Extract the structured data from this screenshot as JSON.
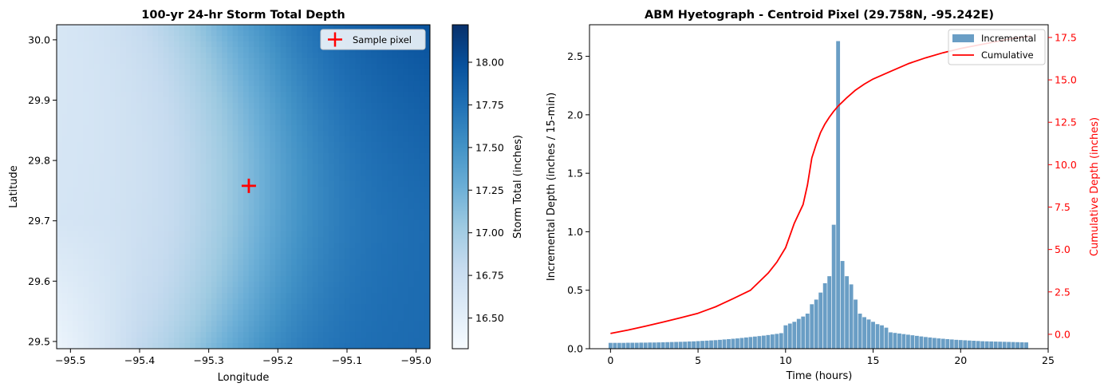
{
  "chart_data": [
    {
      "type": "heatmap",
      "title": "100-yr 24-hr Storm Total Depth",
      "xlabel": "Longitude",
      "ylabel": "Latitude",
      "xlim": [
        -95.52,
        -94.98
      ],
      "ylim": [
        29.488,
        30.025
      ],
      "xticks": [
        -95.5,
        -95.4,
        -95.3,
        -95.2,
        -95.1,
        -95.0
      ],
      "xtick_labels": [
        "−95.5",
        "−95.4",
        "−95.3",
        "−95.2",
        "−95.1",
        "−95.0"
      ],
      "yticks": [
        29.5,
        29.6,
        29.7,
        29.8,
        29.9,
        30.0
      ],
      "ytick_labels": [
        "29.5",
        "29.6",
        "29.7",
        "29.8",
        "29.9",
        "30.0"
      ],
      "colorbar": {
        "label": "Storm Total (inches)",
        "range": [
          16.32,
          18.22
        ],
        "ticks": [
          16.5,
          16.75,
          17.0,
          17.25,
          17.5,
          17.75,
          18.0
        ],
        "tick_labels": [
          "16.50",
          "16.75",
          "17.00",
          "17.25",
          "17.50",
          "17.75",
          "18.00"
        ],
        "colormap": [
          "#f7fbff",
          "#deebf7",
          "#c6dbef",
          "#9ecae1",
          "#6baed6",
          "#4292c6",
          "#2171b5",
          "#08519c",
          "#08306b"
        ]
      },
      "grid": false,
      "marker": {
        "lon": -95.242,
        "lat": 29.758,
        "color": "#ff0000",
        "symbol": "+"
      },
      "legend": {
        "position": "top-right",
        "entries": [
          "Sample pixel"
        ]
      }
    },
    {
      "type": "bar",
      "title": "ABM Hyetograph - Centroid Pixel (29.758N, -95.242E)",
      "xlabel": "Time (hours)",
      "ylabel": "Incremental Depth (inches / 15-min)",
      "y2label": "Cumulative Depth (inches)",
      "xlim": [
        -1.2,
        25.0
      ],
      "ylim": [
        0,
        2.77
      ],
      "y2lim": [
        -0.85,
        18.25
      ],
      "xticks": [
        0,
        5,
        10,
        15,
        20,
        25
      ],
      "xtick_labels": [
        "0",
        "5",
        "10",
        "15",
        "20",
        "25"
      ],
      "yticks": [
        0.0,
        0.5,
        1.0,
        1.5,
        2.0,
        2.5
      ],
      "ytick_labels": [
        "0.0",
        "0.5",
        "1.0",
        "1.5",
        "2.0",
        "2.5"
      ],
      "y2ticks": [
        0.0,
        2.5,
        5.0,
        7.5,
        10.0,
        12.5,
        15.0,
        17.5
      ],
      "y2tick_labels": [
        "0.0",
        "2.5",
        "5.0",
        "7.5",
        "10.0",
        "12.5",
        "15.0",
        "17.5"
      ],
      "grid": false,
      "bar_width_hours": 0.22,
      "legend": {
        "position": "top-right"
      },
      "colors": {
        "incremental": "#6a9ec5",
        "cumulative": "#ff0000",
        "y2axis": "#ff0000"
      },
      "series": [
        {
          "name": "Incremental",
          "kind": "bar",
          "x_start": 0,
          "x_step": 0.25,
          "values": [
            0.05,
            0.05,
            0.05,
            0.05,
            0.051,
            0.051,
            0.051,
            0.052,
            0.052,
            0.053,
            0.053,
            0.054,
            0.055,
            0.056,
            0.057,
            0.058,
            0.059,
            0.06,
            0.062,
            0.063,
            0.065,
            0.067,
            0.069,
            0.071,
            0.073,
            0.076,
            0.079,
            0.082,
            0.085,
            0.088,
            0.092,
            0.096,
            0.1,
            0.104,
            0.108,
            0.112,
            0.117,
            0.122,
            0.127,
            0.133,
            0.2,
            0.215,
            0.23,
            0.255,
            0.275,
            0.3,
            0.38,
            0.42,
            0.48,
            0.56,
            0.62,
            1.06,
            2.63,
            0.75,
            0.62,
            0.55,
            0.42,
            0.3,
            0.27,
            0.25,
            0.23,
            0.21,
            0.2,
            0.18,
            0.14,
            0.135,
            0.13,
            0.125,
            0.12,
            0.115,
            0.11,
            0.105,
            0.1,
            0.096,
            0.092,
            0.088,
            0.085,
            0.082,
            0.079,
            0.076,
            0.074,
            0.072,
            0.07,
            0.068,
            0.066,
            0.064,
            0.063,
            0.062,
            0.061,
            0.06,
            0.059,
            0.058,
            0.057,
            0.056,
            0.055,
            0.054
          ]
        },
        {
          "name": "Cumulative",
          "kind": "line",
          "axis": "y2",
          "x": [
            0,
            1,
            2,
            3,
            4,
            5,
            6,
            7,
            8,
            8.5,
            9,
            9.5,
            10,
            10.5,
            11,
            11.25,
            11.5,
            11.75,
            12,
            12.25,
            12.5,
            12.75,
            13,
            13.5,
            14,
            14.5,
            15,
            16,
            17,
            18,
            19,
            20,
            21,
            22,
            23,
            24
          ],
          "values": [
            0.05,
            0.25,
            0.48,
            0.72,
            0.97,
            1.24,
            1.62,
            2.1,
            2.6,
            3.1,
            3.6,
            4.25,
            5.1,
            6.55,
            7.65,
            8.8,
            10.4,
            11.2,
            11.9,
            12.4,
            12.8,
            13.15,
            13.45,
            13.95,
            14.4,
            14.75,
            15.05,
            15.5,
            15.95,
            16.3,
            16.6,
            16.85,
            17.05,
            17.25,
            17.45,
            17.58
          ]
        }
      ]
    }
  ]
}
